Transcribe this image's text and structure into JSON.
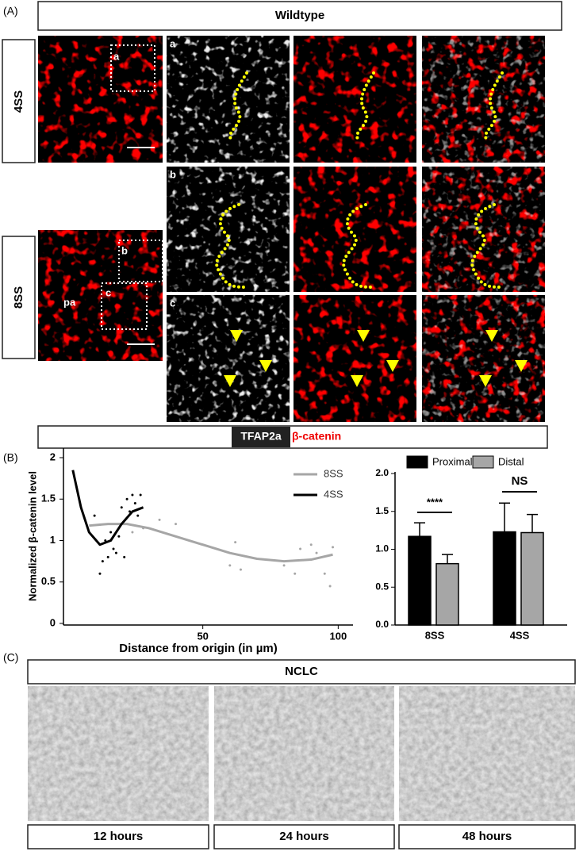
{
  "panel_a": {
    "label": "(A)",
    "title": "Wildtype",
    "stages": [
      "4SS",
      "8SS"
    ],
    "insets": [
      "a",
      "b",
      "c"
    ],
    "region": "pa",
    "stain_1": "TFAP2a",
    "stain_2": "β-catenin"
  },
  "panel_b": {
    "label": "(B)"
  },
  "chart_data": [
    {
      "type": "line",
      "y_label": "Normalized β-catenin level",
      "x_label": "Distance from origin (in µm)",
      "xlim": [
        0,
        104
      ],
      "xticks": [
        50,
        100
      ],
      "ylim": [
        0,
        2
      ],
      "yticks": [
        0,
        0.5,
        1,
        1.5,
        2
      ],
      "series": [
        {
          "name": "8SS",
          "color": "#a6a6a6",
          "x": [
            8,
            15,
            22,
            30,
            40,
            50,
            60,
            70,
            80,
            90,
            98
          ],
          "values": [
            1.18,
            1.2,
            1.2,
            1.15,
            1.05,
            0.95,
            0.85,
            0.78,
            0.75,
            0.77,
            0.83
          ],
          "scatter_x": [
            20,
            24,
            28,
            34,
            40,
            60,
            62,
            64,
            80,
            84,
            86,
            90,
            92,
            95,
            97,
            98
          ],
          "scatter_y": [
            1.2,
            1.1,
            1.15,
            1.25,
            1.2,
            0.7,
            0.98,
            0.65,
            0.7,
            0.6,
            0.9,
            0.95,
            0.85,
            0.6,
            0.45,
            0.92
          ]
        },
        {
          "name": "4SS",
          "color": "#000000",
          "x": [
            2,
            5,
            8,
            12,
            16,
            20,
            24,
            28
          ],
          "values": [
            1.85,
            1.4,
            1.1,
            0.95,
            1.0,
            1.2,
            1.35,
            1.4
          ],
          "scatter_x": [
            10,
            12,
            13,
            14,
            15,
            16,
            17,
            18,
            19,
            20,
            21,
            22,
            23,
            24,
            25,
            26,
            27
          ],
          "scatter_y": [
            1.3,
            0.6,
            0.75,
            1.0,
            0.8,
            1.1,
            0.9,
            0.85,
            1.05,
            1.4,
            0.8,
            1.5,
            1.35,
            1.55,
            1.45,
            1.3,
            1.55
          ]
        }
      ]
    },
    {
      "type": "bar",
      "categories": [
        "8SS",
        "4SS"
      ],
      "ylim": [
        0,
        2
      ],
      "yticks": [
        {
          "value": 0,
          "label": "0.0"
        },
        {
          "value": 0.5,
          "label": "0.5"
        },
        {
          "value": 1,
          "label": "1.0"
        },
        {
          "value": 1.5,
          "label": "1.5"
        },
        {
          "value": 2,
          "label": "2.0"
        }
      ],
      "series": [
        {
          "name": "Proximal",
          "color": "#000000",
          "values": [
            1.17,
            1.23
          ],
          "errors": [
            0.18,
            0.38
          ]
        },
        {
          "name": "Distal",
          "color": "#a6a6a6",
          "values": [
            0.81,
            1.22
          ],
          "errors": [
            0.12,
            0.24
          ]
        }
      ],
      "annotations": [
        "****",
        "NS"
      ]
    }
  ],
  "panel_c": {
    "label": "(C)",
    "title": "NCLC",
    "times": [
      "12 hours",
      "24 hours",
      "48 hours"
    ]
  }
}
